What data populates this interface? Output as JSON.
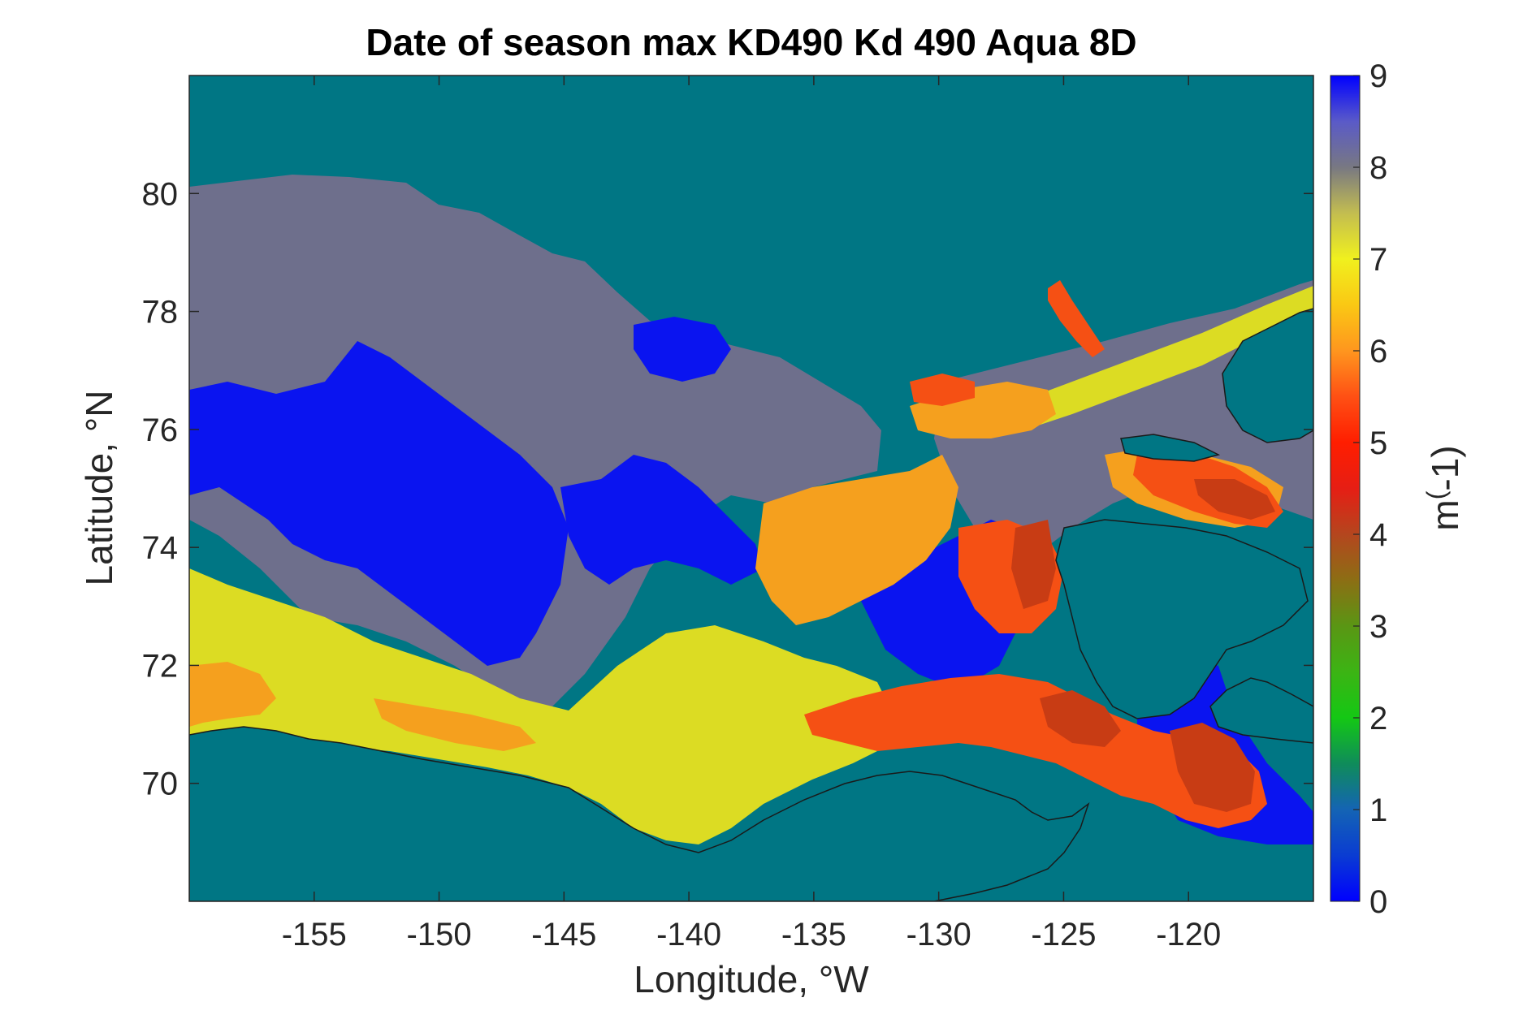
{
  "figure": {
    "title": "Date of season max KD490 Kd 490 Aqua 8D",
    "xlabel": "Longitude, °W",
    "ylabel": "Latitude, °N",
    "colorbar_label": "m(-1)"
  },
  "colors": {
    "ocean": "#007684",
    "grey": "#6e6f8c",
    "blue": "#0a14f0",
    "yellow": "#dcdc23",
    "orange": "#f5a01e",
    "red_orange": "#f55014",
    "dark_red": "#c83c14",
    "coast": "#1a1a1a"
  },
  "chart_data": {
    "type": "heatmap",
    "title": "Date of season max KD490 Kd 490 Aqua 8D",
    "xlabel": "Longitude, °W",
    "ylabel": "Latitude, °N",
    "xlim": [
      -160,
      -115
    ],
    "ylim": [
      68,
      82
    ],
    "xticks": [
      -155,
      -150,
      -145,
      -140,
      -135,
      -130,
      -125,
      -120
    ],
    "xtick_labels": [
      "-155",
      "-150",
      "-145",
      "-140",
      "-135",
      "-130",
      "-125",
      "-120"
    ],
    "yticks": [
      70,
      72,
      74,
      76,
      78,
      80
    ],
    "ytick_labels": [
      "70",
      "72",
      "74",
      "76",
      "78",
      "80"
    ],
    "colorbar": {
      "label": "m(-1)",
      "range": [
        0,
        9
      ],
      "ticks": [
        0,
        1,
        2,
        3,
        4,
        5,
        6,
        7,
        8,
        9
      ],
      "tick_labels": [
        "0",
        "1",
        "2",
        "3",
        "4",
        "5",
        "6",
        "7",
        "8",
        "9"
      ],
      "colormap": [
        [
          0,
          "#0000ff"
        ],
        [
          0.5,
          "#0a3cd2"
        ],
        [
          1,
          "#1464b4"
        ],
        [
          1.5,
          "#0f8c5a"
        ],
        [
          2,
          "#14c814"
        ],
        [
          2.5,
          "#3cb414"
        ],
        [
          3,
          "#5a9614"
        ],
        [
          3.5,
          "#8c6e14"
        ],
        [
          4,
          "#b4461e"
        ],
        [
          4.5,
          "#e61e14"
        ],
        [
          5,
          "#ff1e00"
        ],
        [
          5.5,
          "#ff5014"
        ],
        [
          6,
          "#ff961e"
        ],
        [
          6.5,
          "#fac814"
        ],
        [
          7,
          "#f0f01e"
        ],
        [
          7.5,
          "#c3bd50"
        ],
        [
          8,
          "#787882"
        ],
        [
          8.5,
          "#5a5ac8"
        ],
        [
          9,
          "#0000ff"
        ]
      ]
    },
    "regions": [
      {
        "name": "grey",
        "value": 8,
        "color": "#6e6f8c",
        "description": "northern band"
      },
      {
        "name": "blue",
        "value": 9,
        "color": "#0a14f0"
      },
      {
        "name": "yellow",
        "value": 7,
        "color": "#dcdc23"
      },
      {
        "name": "orange",
        "value": 6,
        "color": "#f5a01e"
      },
      {
        "name": "red-orange",
        "value": 5.3,
        "color": "#f55014"
      },
      {
        "name": "dark-red",
        "value": 4.5,
        "color": "#c83c14"
      }
    ]
  }
}
